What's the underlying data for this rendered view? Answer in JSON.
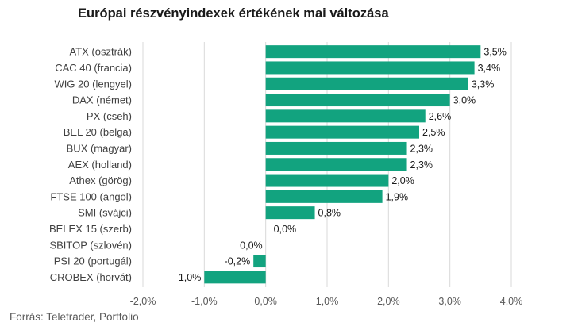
{
  "chart_data": {
    "type": "bar",
    "orientation": "horizontal",
    "title": "Európai részvényindexek értékének mai változása",
    "source": "Forrás: Teletrader, Portfolio",
    "categories": [
      "ATX (osztrák)",
      "CAC 40 (francia)",
      "WIG 20 (lengyel)",
      "DAX (német)",
      "PX (cseh)",
      "BEL 20 (belga)",
      "BUX (magyar)",
      "AEX (holland)",
      "Athex (görög)",
      "FTSE 100 (angol)",
      "SMI (svájci)",
      "BELEX 15 (szerb)",
      "SBITOP (szlovén)",
      "PSI 20 (portugál)",
      "CROBEX (horvát)"
    ],
    "values": [
      3.5,
      3.4,
      3.3,
      3.0,
      2.6,
      2.5,
      2.3,
      2.3,
      2.0,
      1.9,
      0.8,
      0.0,
      0.0,
      -0.2,
      -1.0
    ],
    "value_labels": [
      "3,5%",
      "3,4%",
      "3,3%",
      "3,0%",
      "2,6%",
      "2,5%",
      "2,3%",
      "2,3%",
      "2,0%",
      "1,9%",
      "0,8%",
      "0,0%",
      "0,0%",
      "-0,2%",
      "-1,0%"
    ],
    "xlim": [
      -2.0,
      4.0
    ],
    "xticks": [
      -2.0,
      -1.0,
      0.0,
      1.0,
      2.0,
      3.0,
      4.0
    ],
    "xtick_labels": [
      "-2,0%",
      "-1,0%",
      "0,0%",
      "1,0%",
      "2,0%",
      "3,0%",
      "4,0%"
    ],
    "grid": true,
    "bar_color": "#12a37f",
    "grid_color": "#d9d9d9"
  }
}
